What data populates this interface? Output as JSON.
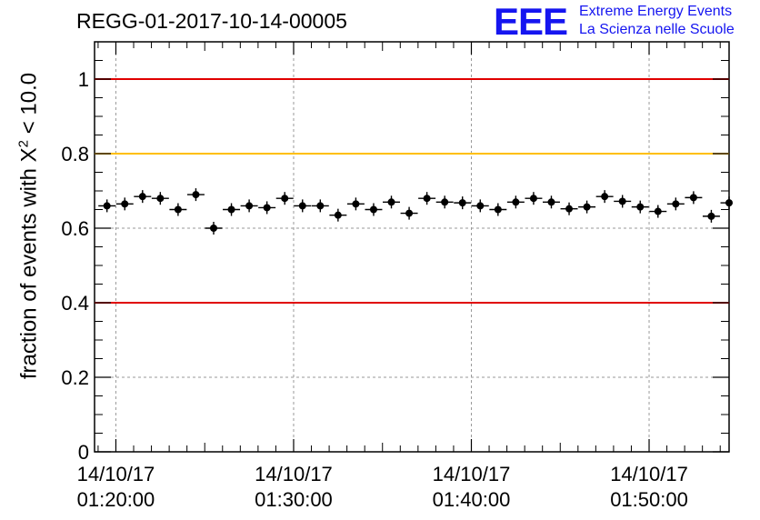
{
  "chart_data": {
    "type": "scatter",
    "title": "REGG-01-2017-10-14-00005",
    "ylabel_prefix": "fraction of events with X",
    "ylabel_sup": "2",
    "ylabel_suffix": " < 10.0",
    "ylim": [
      0,
      1.1
    ],
    "xlim_minutes": [
      78.8,
      114.5
    ],
    "yticks": [
      {
        "value": 0,
        "label": "0"
      },
      {
        "value": 0.2,
        "label": "0.2"
      },
      {
        "value": 0.4,
        "label": "0.4"
      },
      {
        "value": 0.6,
        "label": "0.6"
      },
      {
        "value": 0.8,
        "label": "0.8"
      },
      {
        "value": 1.0,
        "label": "1"
      }
    ],
    "xticks": [
      {
        "minutes": 80,
        "date": "14/10/17",
        "time": "01:20:00"
      },
      {
        "minutes": 90,
        "date": "14/10/17",
        "time": "01:30:00"
      },
      {
        "minutes": 100,
        "date": "14/10/17",
        "time": "01:40:00"
      },
      {
        "minutes": 110,
        "date": "14/10/17",
        "time": "01:50:00"
      }
    ],
    "reference_lines": [
      {
        "value": 1.0,
        "color": "#e00000"
      },
      {
        "value": 0.8,
        "color": "#ffbf00"
      },
      {
        "value": 0.4,
        "color": "#e00000"
      }
    ],
    "bin_width_minutes": 0.97,
    "points": [
      {
        "x": 79.5,
        "y": 0.66
      },
      {
        "x": 80.5,
        "y": 0.665
      },
      {
        "x": 81.5,
        "y": 0.685
      },
      {
        "x": 82.5,
        "y": 0.68
      },
      {
        "x": 83.5,
        "y": 0.65
      },
      {
        "x": 84.5,
        "y": 0.69
      },
      {
        "x": 85.5,
        "y": 0.6
      },
      {
        "x": 86.5,
        "y": 0.65
      },
      {
        "x": 87.5,
        "y": 0.66
      },
      {
        "x": 88.5,
        "y": 0.655
      },
      {
        "x": 89.5,
        "y": 0.68
      },
      {
        "x": 90.5,
        "y": 0.66
      },
      {
        "x": 91.5,
        "y": 0.66
      },
      {
        "x": 92.5,
        "y": 0.635
      },
      {
        "x": 93.5,
        "y": 0.665
      },
      {
        "x": 94.5,
        "y": 0.65
      },
      {
        "x": 95.5,
        "y": 0.67
      },
      {
        "x": 96.5,
        "y": 0.64
      },
      {
        "x": 97.5,
        "y": 0.68
      },
      {
        "x": 98.5,
        "y": 0.67
      },
      {
        "x": 99.5,
        "y": 0.668
      },
      {
        "x": 100.5,
        "y": 0.66
      },
      {
        "x": 101.5,
        "y": 0.65
      },
      {
        "x": 102.5,
        "y": 0.67
      },
      {
        "x": 103.5,
        "y": 0.68
      },
      {
        "x": 104.5,
        "y": 0.67
      },
      {
        "x": 105.5,
        "y": 0.652
      },
      {
        "x": 106.5,
        "y": 0.657
      },
      {
        "x": 107.5,
        "y": 0.685
      },
      {
        "x": 108.5,
        "y": 0.672
      },
      {
        "x": 109.5,
        "y": 0.657
      },
      {
        "x": 110.5,
        "y": 0.645
      },
      {
        "x": 111.5,
        "y": 0.665
      },
      {
        "x": 112.5,
        "y": 0.682
      },
      {
        "x": 113.5,
        "y": 0.632
      },
      {
        "x": 114.5,
        "y": 0.668
      }
    ]
  },
  "logo": {
    "mark": "EEE",
    "line1": "Extreme Energy Events",
    "line2": "La Scienza nelle Scuole",
    "color": "#1515f0"
  }
}
